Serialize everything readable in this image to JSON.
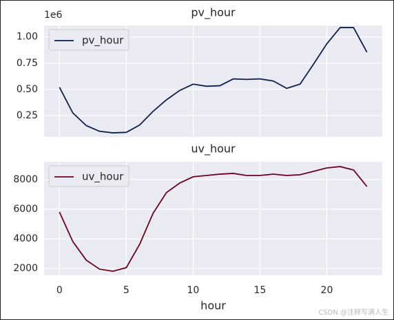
{
  "chart_data": [
    {
      "type": "line",
      "title": "pv_hour",
      "y_offset_label": "1e6",
      "x": [
        0,
        1,
        2,
        3,
        4,
        5,
        6,
        7,
        8,
        9,
        10,
        11,
        12,
        13,
        14,
        15,
        16,
        17,
        18,
        19,
        20,
        21,
        22,
        23
      ],
      "series": [
        {
          "name": "pv_hour",
          "color": "#0b1f4d",
          "values": [
            0.52,
            0.275,
            0.155,
            0.1,
            0.085,
            0.09,
            0.16,
            0.29,
            0.4,
            0.49,
            0.55,
            0.53,
            0.535,
            0.6,
            0.595,
            0.6,
            0.58,
            0.51,
            0.55,
            0.74,
            0.935,
            1.09,
            1.09,
            0.855
          ]
        }
      ],
      "xlim": [
        -1.15,
        24.15
      ],
      "xticks": [
        0,
        5,
        10,
        15,
        20
      ],
      "ylim": [
        0.046,
        1.11
      ],
      "yticks": [
        {
          "value": 0.25,
          "label": "0.25"
        },
        {
          "value": 0.5,
          "label": "0.50"
        },
        {
          "value": 0.75,
          "label": "0.75"
        },
        {
          "value": 1.0,
          "label": "1.00"
        }
      ],
      "grid": true,
      "legend": "upper left"
    },
    {
      "type": "line",
      "title": "uv_hour",
      "xlabel": "hour",
      "x": [
        0,
        1,
        2,
        3,
        4,
        5,
        6,
        7,
        8,
        9,
        10,
        11,
        12,
        13,
        14,
        15,
        16,
        17,
        18,
        19,
        20,
        21,
        22,
        23
      ],
      "series": [
        {
          "name": "uv_hour",
          "color": "#6b0024",
          "values": [
            5810,
            3810,
            2560,
            1950,
            1810,
            2050,
            3630,
            5720,
            7120,
            7770,
            8190,
            8280,
            8370,
            8420,
            8280,
            8280,
            8370,
            8280,
            8330,
            8560,
            8790,
            8880,
            8650,
            7530
          ]
        }
      ],
      "xlim": [
        -1.15,
        24.15
      ],
      "xticks": [
        0,
        5,
        10,
        15,
        20
      ],
      "ylim": [
        1535,
        9209
      ],
      "yticks": [
        2000,
        4000,
        6000,
        8000
      ],
      "grid": true,
      "legend": "upper left"
    }
  ],
  "watermark": "CSDN @注释写满人生"
}
